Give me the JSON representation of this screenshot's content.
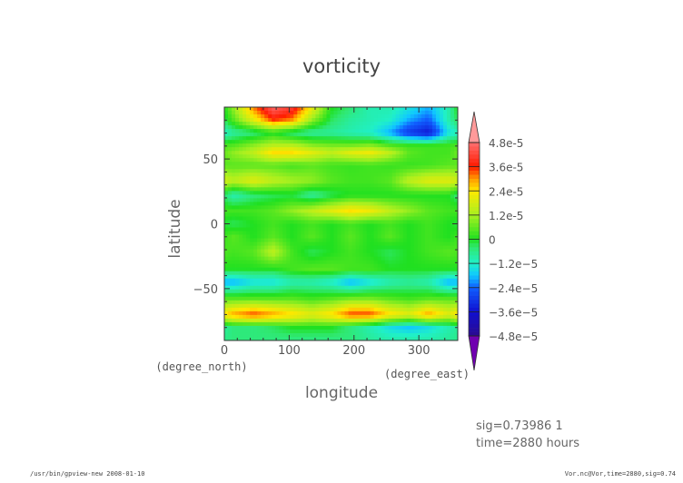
{
  "chart_data": {
    "type": "heatmap",
    "title": "vorticity",
    "xlabel": "longitude",
    "ylabel": "latitude",
    "x_units": "(degree_east)",
    "y_units": "(degree_north)",
    "xlim": [
      0,
      360
    ],
    "ylim": [
      -90,
      90
    ],
    "xticks": [
      0,
      100,
      200,
      300
    ],
    "yticks": [
      -50,
      0,
      50
    ],
    "z_scale": 1e-05,
    "lon": [
      15,
      45,
      75,
      105,
      135,
      165,
      195,
      225,
      255,
      285,
      315,
      345
    ],
    "lat": [
      88,
      80,
      70,
      60,
      55,
      45,
      33,
      22,
      10,
      0,
      -10,
      -22,
      -35,
      -45,
      -58,
      -70,
      -80,
      -88
    ],
    "z": [
      [
        1,
        3,
        4.5,
        4,
        2,
        0,
        -0.5,
        -1,
        -1,
        -1.5,
        -2,
        -1
      ],
      [
        0.5,
        2,
        3.5,
        3,
        1,
        -0.3,
        -0.8,
        -1,
        -1.2,
        -2,
        -2.5,
        -1
      ],
      [
        -0.8,
        -0.5,
        0,
        -0.5,
        -0.8,
        -0.8,
        -1,
        -1.2,
        -2,
        -3,
        -3.5,
        -1.5
      ],
      [
        0.5,
        1,
        1.5,
        1.5,
        1,
        0.8,
        0.8,
        1,
        0.5,
        0.3,
        0.3,
        0.3
      ],
      [
        1,
        1.5,
        2.5,
        2.5,
        2,
        1.5,
        2,
        2.2,
        1.5,
        0.5,
        0.3,
        0.3
      ],
      [
        0.5,
        0.5,
        0.5,
        0.3,
        0.5,
        0.3,
        0.2,
        0.3,
        0.2,
        0.2,
        0.3,
        0.5
      ],
      [
        1.5,
        2,
        1.5,
        1.2,
        1,
        0.5,
        0.3,
        0.3,
        0.5,
        1.5,
        2,
        2
      ],
      [
        -1,
        -0.5,
        -0.3,
        -0.2,
        -0.8,
        -0.3,
        0,
        0,
        0,
        0,
        0,
        0
      ],
      [
        0.3,
        0.3,
        0.5,
        1,
        1.5,
        2,
        2.5,
        2.2,
        1.5,
        1,
        0.5,
        0.3
      ],
      [
        -0.3,
        0,
        0.3,
        0,
        0.3,
        0,
        0.3,
        0,
        0.3,
        0,
        0.3,
        0
      ],
      [
        0.5,
        0,
        0.5,
        0,
        0.5,
        0,
        0.5,
        0,
        0.5,
        0,
        0.3,
        0
      ],
      [
        0.3,
        0.5,
        1.5,
        0.3,
        -0.3,
        0,
        0.3,
        0,
        -0.3,
        0,
        0.3,
        0.5
      ],
      [
        0,
        0,
        0,
        0.3,
        0.5,
        0.5,
        0.3,
        0.3,
        0,
        0,
        0,
        0
      ],
      [
        -2,
        -1.5,
        -1.5,
        -1,
        -1,
        -1.3,
        -2,
        -1.5,
        -1,
        -0.8,
        -1,
        -2
      ],
      [
        0.5,
        0.5,
        0.5,
        0.5,
        0.3,
        0.5,
        0.8,
        0.8,
        0.5,
        0.3,
        0.5,
        0.5
      ],
      [
        3,
        3.5,
        3,
        2.5,
        2,
        2.5,
        3.5,
        3.5,
        2.5,
        2,
        3,
        2
      ],
      [
        -0.5,
        -0.5,
        -0.3,
        0,
        0,
        0,
        -0.5,
        -1,
        -1.5,
        -1.8,
        -1.5,
        -1
      ],
      [
        -0.5,
        -0.5,
        -0.5,
        -0.5,
        -0.5,
        -0.5,
        -0.5,
        -0.8,
        -1,
        -1,
        -1,
        -0.8
      ]
    ],
    "colorbar": {
      "labels": [
        "4.8e-5",
        "3.6e-5",
        "2.4e-5",
        "1.2e-5",
        "0",
        "−1.2e−5",
        "−2.4e−5",
        "−3.6e−5",
        "−4.8e−5"
      ],
      "values": [
        4.8,
        3.6,
        2.4,
        1.2,
        0,
        -1.2,
        -2.4,
        -3.6,
        -4.8
      ],
      "range": [
        -4.8,
        4.8
      ],
      "over_color": "#ff9a9a",
      "under_color": "#7000b0",
      "stops": [
        [
          -4.8,
          "#2a0a90"
        ],
        [
          -3.6,
          "#1010d0"
        ],
        [
          -2.4,
          "#1060ff"
        ],
        [
          -1.8,
          "#10c8ff"
        ],
        [
          -1.2,
          "#20f0c8"
        ],
        [
          -0.4,
          "#30e870"
        ],
        [
          0,
          "#20e020"
        ],
        [
          1.2,
          "#a8f020"
        ],
        [
          2.4,
          "#ffe800"
        ],
        [
          3.0,
          "#ff9a00"
        ],
        [
          3.6,
          "#ff1a00"
        ],
        [
          4.8,
          "#ff7070"
        ]
      ]
    }
  },
  "annotations": {
    "info_line1": "sig=0.73986 1",
    "info_line2": "time=2880 hours",
    "footer_left": "/usr/bin/gpview-new  2008-01-10",
    "footer_right": "Vor.nc@Vor,time=2880,sig=0.74"
  }
}
